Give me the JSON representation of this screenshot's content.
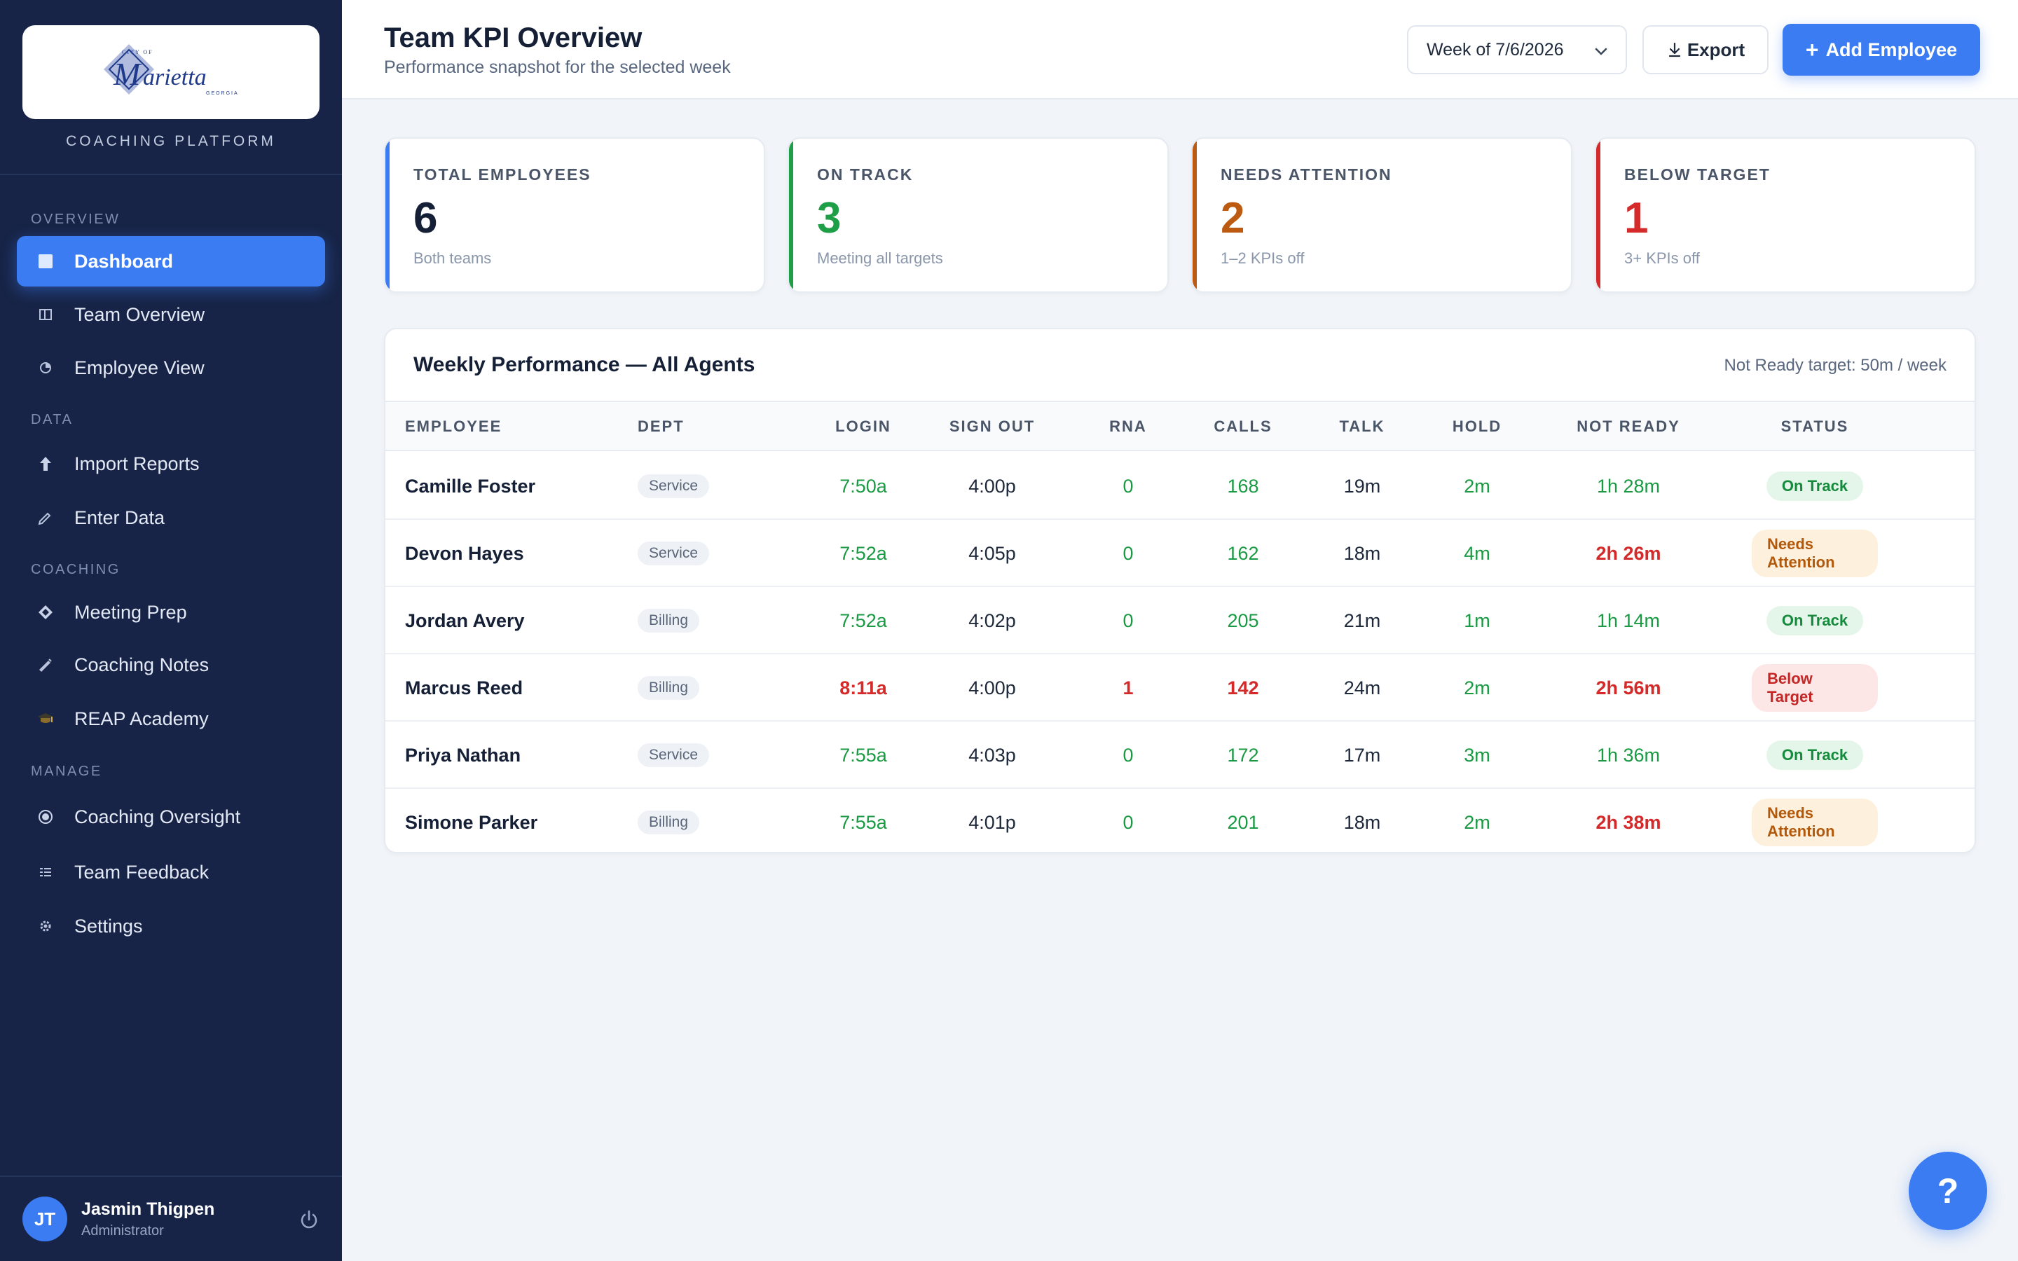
{
  "sidebar": {
    "logo_text": "Marietta",
    "platform_label": "COACHING PLATFORM",
    "sections": {
      "overview": "OVERVIEW",
      "data": "DATA",
      "coaching": "COACHING",
      "manage": "MANAGE"
    },
    "items": {
      "dashboard": {
        "label": "Dashboard",
        "icon": "square-icon"
      },
      "team_overview": {
        "label": "Team Overview",
        "icon": "columns-icon"
      },
      "employee_view": {
        "label": "Employee View",
        "icon": "pie-icon"
      },
      "import_reports": {
        "label": "Import Reports",
        "icon": "upload-arrow-icon"
      },
      "enter_data": {
        "label": "Enter Data",
        "icon": "pencil-icon"
      },
      "meeting_prep": {
        "label": "Meeting Prep",
        "icon": "diamond-icon"
      },
      "coaching_notes": {
        "label": "Coaching Notes",
        "icon": "pen-icon"
      },
      "reap_academy": {
        "label": "REAP Academy",
        "icon": "graduation-cap-icon"
      },
      "coaching_oversight": {
        "label": "Coaching Oversight",
        "icon": "target-icon"
      },
      "team_feedback": {
        "label": "Team Feedback",
        "icon": "list-icon"
      },
      "settings": {
        "label": "Settings",
        "icon": "gear-icon"
      }
    },
    "user": {
      "initials": "JT",
      "name": "Jasmin Thigpen",
      "role": "Administrator"
    }
  },
  "header": {
    "title": "Team KPI Overview",
    "subtitle": "Performance snapshot for the selected week",
    "week_select": "Week of 7/6/2026",
    "export_label": "Export",
    "add_label": "Add Employee"
  },
  "kpis": {
    "total": {
      "label": "TOTAL EMPLOYEES",
      "value": "6",
      "sub": "Both teams",
      "color": "#3b7cf2"
    },
    "on_track": {
      "label": "ON TRACK",
      "value": "3",
      "sub": "Meeting all targets",
      "color": "#1e9e46"
    },
    "needs_attention": {
      "label": "NEEDS ATTENTION",
      "value": "2",
      "sub": "1–2 KPIs off",
      "color": "#bd5a12"
    },
    "below_target": {
      "label": "BELOW TARGET",
      "value": "1",
      "sub": "3+ KPIs off",
      "color": "#d42a2a"
    }
  },
  "table": {
    "title": "Weekly Performance — All Agents",
    "note": "Not Ready target: 50m / week",
    "columns": {
      "employee": "EMPLOYEE",
      "dept": "DEPT",
      "login": "LOGIN",
      "sign_out": "SIGN OUT",
      "rna": "RNA",
      "calls": "CALLS",
      "talk": "TALK",
      "hold": "HOLD",
      "not_ready": "NOT READY",
      "status": "STATUS"
    },
    "rows": [
      {
        "name": "Camille Foster",
        "dept": "Service",
        "login": "7:50a",
        "sign_out": "4:00p",
        "rna": "0",
        "calls": "168",
        "talk": "19m",
        "hold": "2m",
        "not_ready": "1h 28m",
        "status": "On Track"
      },
      {
        "name": "Devon Hayes",
        "dept": "Service",
        "login": "7:52a",
        "sign_out": "4:05p",
        "rna": "0",
        "calls": "162",
        "talk": "18m",
        "hold": "4m",
        "not_ready": "2h 26m",
        "status": "Needs Attention"
      },
      {
        "name": "Jordan Avery",
        "dept": "Billing",
        "login": "7:52a",
        "sign_out": "4:02p",
        "rna": "0",
        "calls": "205",
        "talk": "21m",
        "hold": "1m",
        "not_ready": "1h 14m",
        "status": "On Track"
      },
      {
        "name": "Marcus Reed",
        "dept": "Billing",
        "login": "8:11a",
        "sign_out": "4:00p",
        "rna": "1",
        "calls": "142",
        "talk": "24m",
        "hold": "2m",
        "not_ready": "2h 56m",
        "status": "Below Target"
      },
      {
        "name": "Priya Nathan",
        "dept": "Service",
        "login": "7:55a",
        "sign_out": "4:03p",
        "rna": "0",
        "calls": "172",
        "talk": "17m",
        "hold": "3m",
        "not_ready": "1h 36m",
        "status": "On Track"
      },
      {
        "name": "Simone Parker",
        "dept": "Billing",
        "login": "7:55a",
        "sign_out": "4:01p",
        "rna": "0",
        "calls": "201",
        "talk": "18m",
        "hold": "2m",
        "not_ready": "2h 38m",
        "status": "Needs Attention"
      }
    ]
  },
  "help": {
    "label": "?"
  }
}
